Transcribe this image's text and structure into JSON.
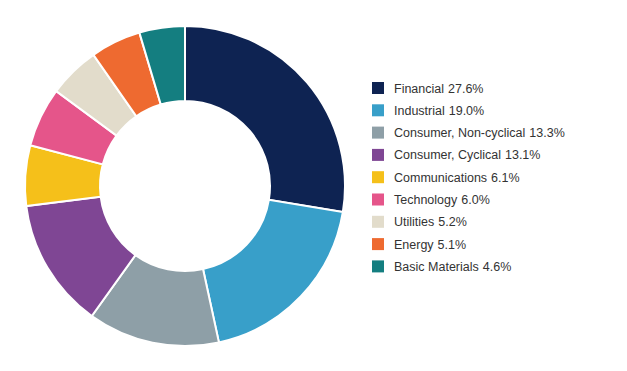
{
  "chart_data": {
    "type": "pie",
    "categories": [
      "Financial",
      "Industrial",
      "Consumer, Non-cyclical",
      "Consumer, Cyclical",
      "Communications",
      "Technology",
      "Utilities",
      "Energy",
      "Basic Materials"
    ],
    "values": [
      27.6,
      19.0,
      13.3,
      13.1,
      6.1,
      6.0,
      5.2,
      5.1,
      4.6
    ],
    "value_labels": [
      "27.6%",
      "19.0%",
      "13.3%",
      "13.1%",
      "6.1%",
      "6.0%",
      "5.2%",
      "5.1%",
      "4.6%"
    ],
    "colors": [
      "#0e2352",
      "#389fc9",
      "#8e9fa7",
      "#7f4694",
      "#f5c01a",
      "#e5558a",
      "#e2dccb",
      "#ee6a30",
      "#147e80"
    ],
    "legend": "right"
  }
}
